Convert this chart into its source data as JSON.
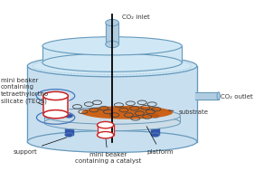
{
  "bg_color": "#ffffff",
  "chamber_color": "#c8dff0",
  "chamber_edge": "#6699bb",
  "lid_color": "#d0e8f5",
  "lid_edge": "#6699bb",
  "tube_color": "#b0cce0",
  "tube_edge": "#6699bb",
  "support_color": "#3355aa",
  "platform_color": "#ccdde8",
  "platform_edge": "#6699bb",
  "substrate_color": "#cc5500",
  "beaker_teos_color": "#cc2222",
  "beaker_cat_color": "#cc2222",
  "outlet_color": "#b0cce0",
  "outlet_edge": "#6699bb",
  "ring_color": "#444444",
  "ring_fill": "#e8e8e8",
  "co2_inlet_label": "CO₂ inlet",
  "co2_outlet_label": "CO₂ outlet",
  "support_label": "support",
  "platform_label": "platform",
  "substrate_label": "substrate",
  "teos_label": "mini beaker\ncontaining\ntetraethylortho\nsilicate (TEOS)",
  "catalyst_label": "mini beaker\ncontaining a catalyst",
  "font_size": 5.0,
  "font_color": "#333333"
}
